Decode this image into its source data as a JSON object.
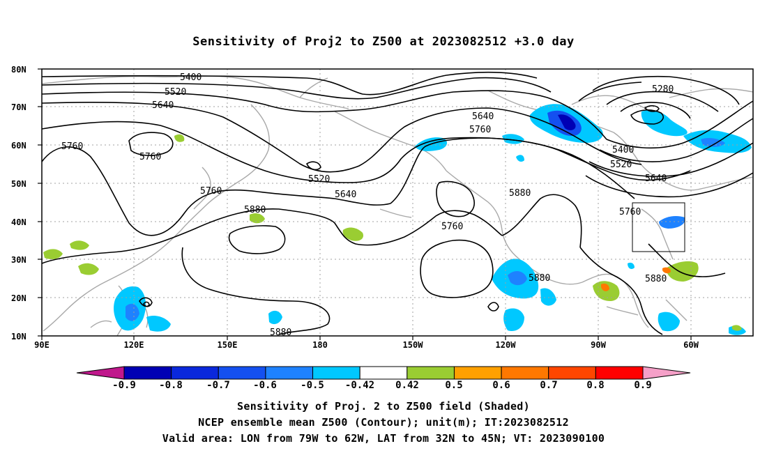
{
  "title": "Sensitivity of Proj2 to Z500 at 2023082512 +3.0 day",
  "lat_labels": [
    "80N",
    "70N",
    "60N",
    "50N",
    "40N",
    "30N",
    "20N",
    "10N"
  ],
  "lon_labels": [
    "90E",
    "120E",
    "150E",
    "180",
    "150W",
    "120W",
    "90W",
    "60W"
  ],
  "contour_labels": [
    "5400",
    "5520",
    "5640",
    "5760",
    "5760",
    "5280",
    "5640",
    "5760",
    "5520",
    "5640",
    "5760",
    "5880",
    "5880",
    "5760",
    "5400",
    "5520",
    "5640",
    "5760",
    "5880",
    "5880",
    "5880"
  ],
  "colorbar": {
    "labels": [
      "-0.9",
      "-0.8",
      "-0.7",
      "-0.6",
      "-0.5",
      "-0.42",
      "0.42",
      "0.5",
      "0.6",
      "0.7",
      "0.8",
      "0.9"
    ],
    "colors": [
      "#0000b4",
      "#0a28dc",
      "#1450f0",
      "#1e82ff",
      "#00c8ff",
      "#ffffff",
      "#9acd32",
      "#ffa000",
      "#ff7800",
      "#ff4600",
      "#ff0000"
    ],
    "low_extend_color": "#c0188c",
    "high_extend_color": "#f5a0c8"
  },
  "captions": {
    "line1": "Sensitivity of Proj. 2 to Z500 field (Shaded)",
    "line2": "NCEP ensemble mean Z500 (Contour); unit(m); IT:2023082512",
    "line3": "Valid area: LON from 79W to 62W, LAT from 32N to 45N; VT: 2023090100"
  }
}
